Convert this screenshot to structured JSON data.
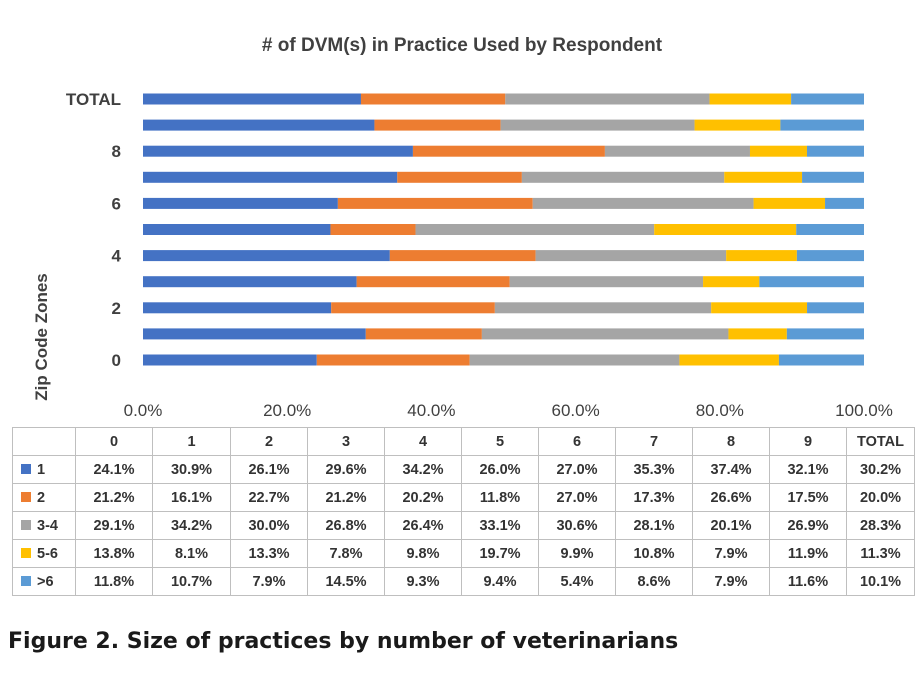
{
  "caption": "Figure 2. Size of practices by number of veterinarians",
  "chart_data": {
    "type": "bar",
    "orientation": "horizontal",
    "stacked": "percent",
    "title": "# of DVM(s) in Practice Used by Respondent",
    "ylabel": "Zip Code Zones",
    "xlabel": "",
    "xlim": [
      0,
      100
    ],
    "x_ticks": [
      "0.0%",
      "20.0%",
      "40.0%",
      "60.0%",
      "80.0%",
      "100.0%"
    ],
    "y_tick_labels": [
      "0",
      "2",
      "4",
      "6",
      "8",
      "TOTAL"
    ],
    "categories": [
      "0",
      "1",
      "2",
      "3",
      "4",
      "5",
      "6",
      "7",
      "8",
      "9",
      "TOTAL"
    ],
    "grid": false,
    "legend": "data table",
    "series": [
      {
        "name": "1",
        "color": "#4472c4",
        "values": [
          24.1,
          30.9,
          26.1,
          29.6,
          34.2,
          26.0,
          27.0,
          35.3,
          37.4,
          32.1,
          30.2
        ],
        "labels": [
          "24.1%",
          "30.9%",
          "26.1%",
          "29.6%",
          "34.2%",
          "26.0%",
          "27.0%",
          "35.3%",
          "37.4%",
          "32.1%",
          "30.2%"
        ]
      },
      {
        "name": "2",
        "color": "#ed7d31",
        "values": [
          21.2,
          16.1,
          22.7,
          21.2,
          20.2,
          11.8,
          27.0,
          17.3,
          26.6,
          17.5,
          20.0
        ],
        "labels": [
          "21.2%",
          "16.1%",
          "22.7%",
          "21.2%",
          "20.2%",
          "11.8%",
          "27.0%",
          "17.3%",
          "26.6%",
          "17.5%",
          "20.0%"
        ]
      },
      {
        "name": "3-4",
        "color": "#a5a5a5",
        "values": [
          29.1,
          34.2,
          30.0,
          26.8,
          26.4,
          33.1,
          30.6,
          28.1,
          20.1,
          26.9,
          28.3
        ],
        "labels": [
          "29.1%",
          "34.2%",
          "30.0%",
          "26.8%",
          "26.4%",
          "33.1%",
          "30.6%",
          "28.1%",
          "20.1%",
          "26.9%",
          "28.3%"
        ]
      },
      {
        "name": "5-6",
        "color": "#ffc000",
        "values": [
          13.8,
          8.1,
          13.3,
          7.8,
          9.8,
          19.7,
          9.9,
          10.8,
          7.9,
          11.9,
          11.3
        ],
        "labels": [
          "13.8%",
          "8.1%",
          "13.3%",
          "7.8%",
          "9.8%",
          "19.7%",
          "9.9%",
          "10.8%",
          "7.9%",
          "11.9%",
          "11.3%"
        ]
      },
      {
        "name": ">6",
        "color": "#5b9bd5",
        "values": [
          11.8,
          10.7,
          7.9,
          14.5,
          9.3,
          9.4,
          5.4,
          8.6,
          7.9,
          11.6,
          10.1
        ],
        "labels": [
          "11.8%",
          "10.7%",
          "7.9%",
          "14.5%",
          "9.3%",
          "9.4%",
          "5.4%",
          "8.6%",
          "7.9%",
          "11.6%",
          "10.1%"
        ]
      }
    ]
  }
}
